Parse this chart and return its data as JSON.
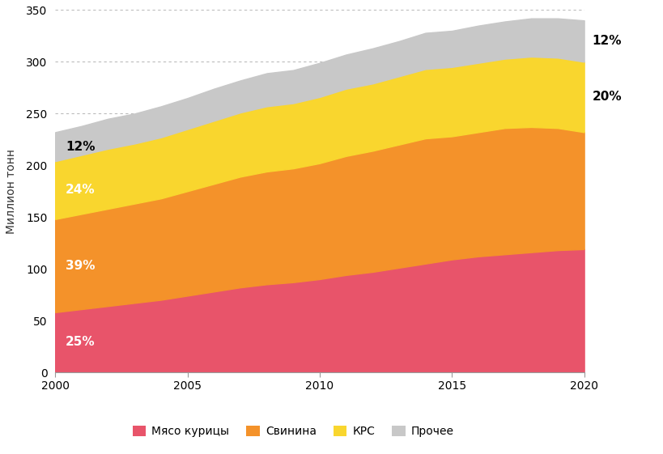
{
  "years": [
    2000,
    2001,
    2002,
    2003,
    2004,
    2005,
    2006,
    2007,
    2008,
    2009,
    2010,
    2011,
    2012,
    2013,
    2014,
    2015,
    2016,
    2017,
    2018,
    2019,
    2020
  ],
  "chicken": [
    58,
    61,
    64,
    67,
    70,
    74,
    78,
    82,
    85,
    87,
    90,
    94,
    97,
    101,
    105,
    109,
    112,
    114,
    116,
    118,
    119
  ],
  "pork": [
    90,
    92,
    94,
    96,
    98,
    101,
    104,
    107,
    109,
    110,
    112,
    115,
    117,
    119,
    121,
    119,
    120,
    122,
    121,
    118,
    113
  ],
  "beef": [
    56,
    57,
    58,
    58,
    59,
    60,
    61,
    62,
    63,
    63,
    64,
    65,
    65,
    66,
    67,
    67,
    67,
    67,
    68,
    68,
    68
  ],
  "other": [
    28,
    28,
    29,
    29,
    30,
    30,
    31,
    31,
    32,
    32,
    33,
    33,
    34,
    34,
    35,
    35,
    36,
    36,
    37,
    38,
    40
  ],
  "colors": {
    "chicken": "#E8546A",
    "pork": "#F4922A",
    "beef": "#F9D62E",
    "other": "#C8C8C8"
  },
  "labels": {
    "chicken": "Мясо курицы",
    "pork": "Свинина",
    "beef": "КРС",
    "other": "Прочее"
  },
  "annotations_2000": {
    "chicken": {
      "color": "white"
    },
    "pork": {
      "color": "white"
    },
    "beef": {
      "color": "white"
    },
    "other": {
      "text": "12%",
      "color": "black"
    }
  },
  "annotations_2020": {
    "chicken": {
      "color": "white"
    },
    "pork": {
      "color": "white"
    },
    "beef": {
      "text": "20%",
      "color": "black"
    },
    "other": {
      "text": "12%",
      "color": "black"
    }
  },
  "ylabel": "Миллион тонн",
  "ylim": [
    0,
    350
  ],
  "yticks": [
    0,
    50,
    100,
    150,
    200,
    250,
    300,
    350
  ],
  "xlim": [
    2000,
    2020
  ],
  "xticks": [
    2000,
    2005,
    2010,
    2015,
    2020
  ],
  "background_color": "#FFFFFF",
  "grid_color": "#BBBBBB",
  "figsize": [
    8.2,
    5.61
  ],
  "dpi": 100
}
